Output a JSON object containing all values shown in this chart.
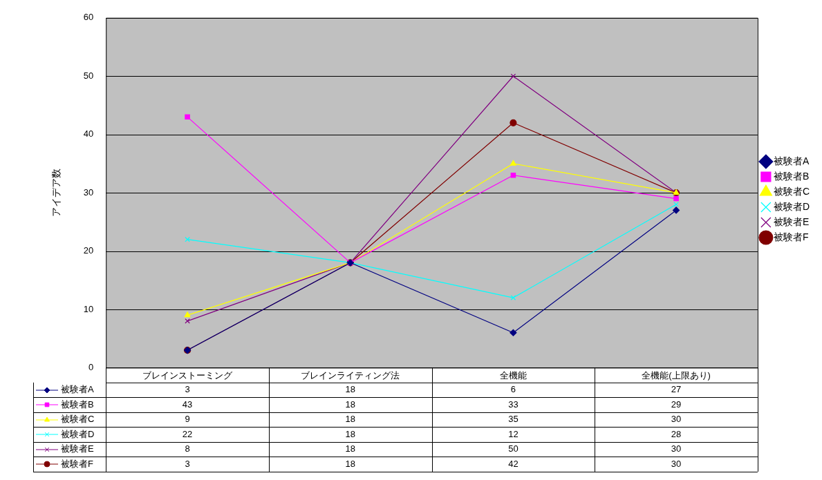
{
  "chart_data": {
    "type": "line",
    "ylabel": "アイデア数",
    "categories": [
      "ブレインストーミング",
      "ブレインライティング法",
      "全機能",
      "全機能(上限あり)"
    ],
    "ylim": [
      0,
      60
    ],
    "yticks": [
      0,
      10,
      20,
      30,
      40,
      50,
      60
    ],
    "grid": "y",
    "legend": "right",
    "data_labels": true,
    "line_style": "solid",
    "series": [
      {
        "name": "被験者A",
        "color": "#000080",
        "marker": "diamond",
        "values": [
          3,
          18,
          6,
          27
        ]
      },
      {
        "name": "被験者B",
        "color": "#ff00ff",
        "marker": "square",
        "values": [
          43,
          18,
          33,
          29
        ]
      },
      {
        "name": "被験者C",
        "color": "#ffff00",
        "marker": "triangle",
        "values": [
          9,
          18,
          35,
          30
        ]
      },
      {
        "name": "被験者D",
        "color": "#00ffff",
        "marker": "cross",
        "values": [
          22,
          18,
          12,
          28
        ]
      },
      {
        "name": "被験者E",
        "color": "#800080",
        "marker": "cross",
        "values": [
          8,
          18,
          50,
          30
        ]
      },
      {
        "name": "被験者F",
        "color": "#800000",
        "marker": "circle",
        "values": [
          3,
          18,
          42,
          30
        ]
      }
    ]
  }
}
